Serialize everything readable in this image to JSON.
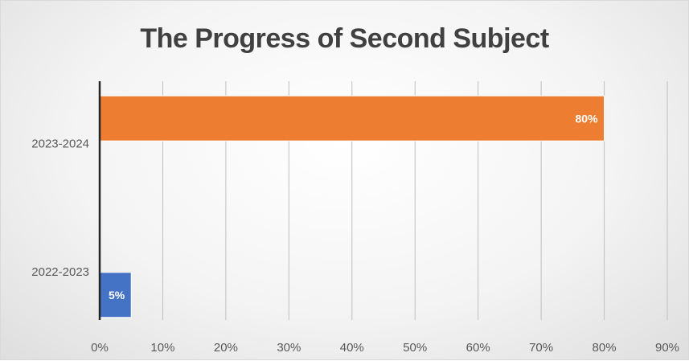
{
  "chart_data": {
    "type": "bar",
    "orientation": "horizontal",
    "title": "The Progress of Second Subject",
    "categories": [
      "2022-2023",
      "2023-2024"
    ],
    "values": [
      0.05,
      0.8
    ],
    "data_labels": [
      "5%",
      "80%"
    ],
    "bar_colors": [
      "#4472c4",
      "#ed7d31"
    ],
    "xlim": [
      0,
      0.9
    ],
    "x_ticks": [
      0,
      0.1,
      0.2,
      0.3,
      0.4,
      0.5,
      0.6,
      0.7,
      0.8,
      0.9
    ],
    "x_tick_labels": [
      "0%",
      "10%",
      "20%",
      "30%",
      "40%",
      "50%",
      "60%",
      "70%",
      "80%",
      "90%"
    ],
    "xlabel": "",
    "ylabel": "",
    "grid": true,
    "legend": "none"
  }
}
